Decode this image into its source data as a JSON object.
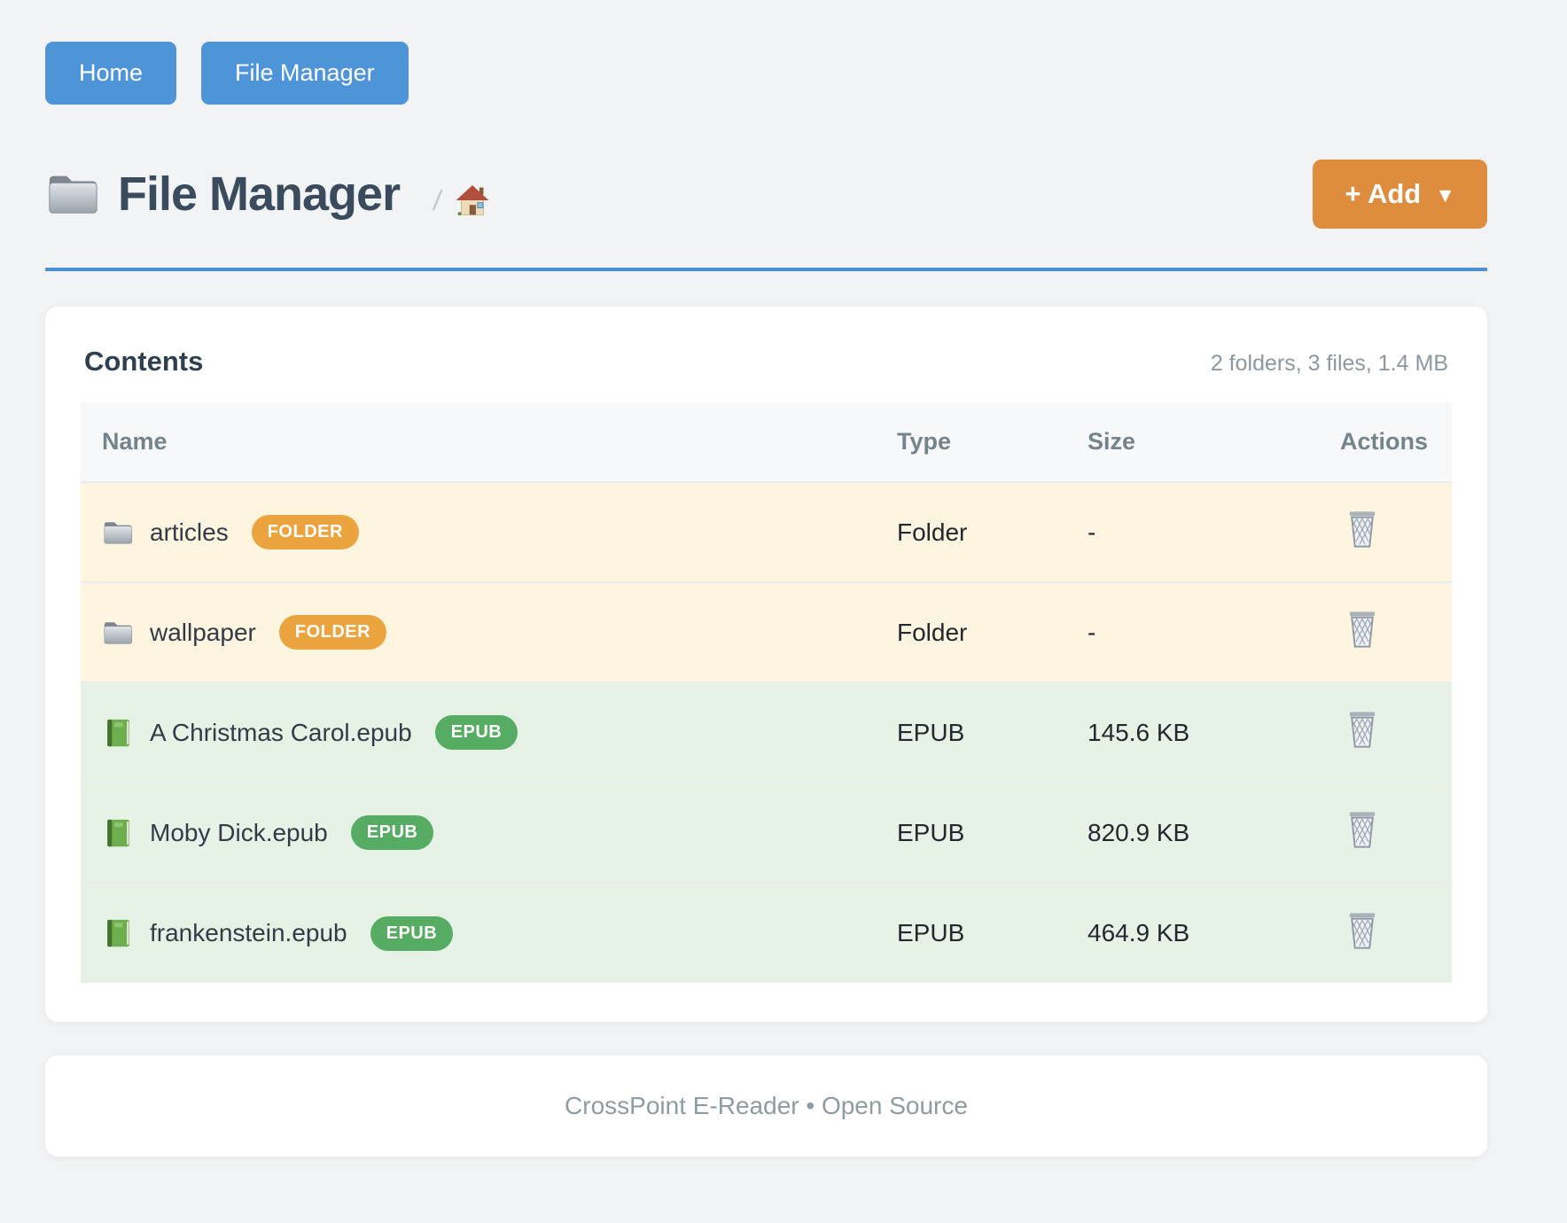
{
  "nav": {
    "items": [
      {
        "label": "Home"
      },
      {
        "label": "File Manager"
      }
    ]
  },
  "header": {
    "title": "File Manager",
    "title_icon": "folder-icon",
    "breadcrumb": {
      "separator": "/",
      "home_icon": "house-icon"
    },
    "add_button": {
      "label": "+ Add",
      "caret": "▼"
    }
  },
  "contents": {
    "title": "Contents",
    "summary": "2 folders, 3 files, 1.4 MB",
    "table": {
      "headers": [
        "Name",
        "Type",
        "Size",
        "Actions"
      ],
      "rows": [
        {
          "kind": "folder",
          "icon": "folder-icon",
          "name": "articles",
          "badge": "FOLDER",
          "type": "Folder",
          "size": "-",
          "action_icon": "trash-icon"
        },
        {
          "kind": "folder",
          "icon": "folder-icon",
          "name": "wallpaper",
          "badge": "FOLDER",
          "type": "Folder",
          "size": "-",
          "action_icon": "trash-icon"
        },
        {
          "kind": "epub",
          "icon": "book-icon",
          "name": "A Christmas Carol.epub",
          "badge": "EPUB",
          "type": "EPUB",
          "size": "145.6 KB",
          "action_icon": "trash-icon"
        },
        {
          "kind": "epub",
          "icon": "book-icon",
          "name": "Moby Dick.epub",
          "badge": "EPUB",
          "type": "EPUB",
          "size": "820.9 KB",
          "action_icon": "trash-icon"
        },
        {
          "kind": "epub",
          "icon": "book-icon",
          "name": "frankenstein.epub",
          "badge": "EPUB",
          "type": "EPUB",
          "size": "464.9 KB",
          "action_icon": "trash-icon"
        }
      ]
    }
  },
  "footer": {
    "text": "CrossPoint E-Reader • Open Source"
  },
  "colors": {
    "accent_blue": "#4a90d8",
    "button_blue": "#4e94d8",
    "add_orange": "#de8d3f",
    "folder_badge": "#eba43e",
    "epub_badge": "#56ac62",
    "folder_row_bg": "#fdf5e0",
    "epub_row_bg": "#e7f2e6",
    "page_bg": "#f2f3f4"
  }
}
